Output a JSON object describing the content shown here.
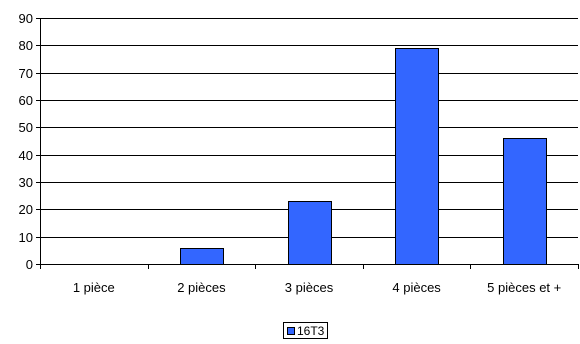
{
  "chart_data": {
    "type": "bar",
    "categories": [
      "1 pièce",
      "2 pièces",
      "3 pièces",
      "4 pièces",
      "5 pièces et +"
    ],
    "series": [
      {
        "name": "16T3",
        "values": [
          0,
          6,
          23,
          79,
          46
        ],
        "color": "#3366ff"
      }
    ],
    "title": "",
    "xlabel": "",
    "ylabel": "",
    "ylim": [
      0,
      90
    ],
    "yticks": [
      0,
      10,
      20,
      30,
      40,
      50,
      60,
      70,
      80,
      90
    ],
    "grid": true,
    "legend_position": "bottom"
  }
}
